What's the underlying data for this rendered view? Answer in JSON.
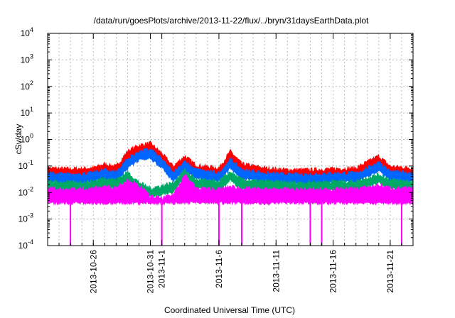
{
  "chart_data": {
    "type": "line",
    "title": "/data/run/goesPlots/archive/2013-11-22/flux/../bryn/31daysEarthData.plot",
    "xlabel": "Coordinated Universal Time (UTC)",
    "ylabel": "cSv/day",
    "yscale": "log",
    "ylim": [
      0.0001,
      10000
    ],
    "xlim": [
      "2013-10-22",
      "2013-11-23"
    ],
    "grid": true,
    "y_ticks": [
      {
        "value": 0.0001,
        "base": "10",
        "exp": "-4"
      },
      {
        "value": 0.001,
        "base": "10",
        "exp": "-3"
      },
      {
        "value": 0.01,
        "base": "10",
        "exp": "-2"
      },
      {
        "value": 0.1,
        "base": "10",
        "exp": "-1"
      },
      {
        "value": 1,
        "base": "10",
        "exp": "0"
      },
      {
        "value": 10,
        "base": "10",
        "exp": "1"
      },
      {
        "value": 100,
        "base": "10",
        "exp": "2"
      },
      {
        "value": 1000,
        "base": "10",
        "exp": "3"
      },
      {
        "value": 10000,
        "base": "10",
        "exp": "4"
      }
    ],
    "x_ticks": [
      {
        "date": "2013-10-26",
        "label": "2013-10-26"
      },
      {
        "date": "2013-10-31",
        "label": "2013-10-31"
      },
      {
        "date": "2013-11-01",
        "label": "2013-11-1"
      },
      {
        "date": "2013-11-06",
        "label": "2013-11-6"
      },
      {
        "date": "2013-11-11",
        "label": "2013-11-11"
      },
      {
        "date": "2013-11-16",
        "label": "2013-11-16"
      },
      {
        "date": "2013-11-21",
        "label": "2013-11-21"
      }
    ],
    "series": [
      {
        "color": "#ff0000",
        "x": [
          "2013-10-22",
          "2013-10-24",
          "2013-10-26",
          "2013-10-27",
          "2013-10-28",
          "2013-10-29",
          "2013-10-30",
          "2013-10-31",
          "2013-11-01",
          "2013-11-02",
          "2013-11-03",
          "2013-11-04",
          "2013-11-06",
          "2013-11-07",
          "2013-11-08",
          "2013-11-10",
          "2013-11-12",
          "2013-11-14",
          "2013-11-16",
          "2013-11-18",
          "2013-11-19",
          "2013-11-20",
          "2013-11-21",
          "2013-11-23"
        ],
        "values": [
          0.07,
          0.065,
          0.07,
          0.1,
          0.08,
          0.3,
          0.5,
          0.6,
          0.25,
          0.08,
          0.2,
          0.09,
          0.07,
          0.3,
          0.1,
          0.07,
          0.06,
          0.06,
          0.065,
          0.07,
          0.12,
          0.2,
          0.08,
          0.07
        ]
      },
      {
        "color": "#0066ff",
        "x": [
          "2013-10-22",
          "2013-10-24",
          "2013-10-26",
          "2013-10-27",
          "2013-10-28",
          "2013-10-29",
          "2013-10-30",
          "2013-10-31",
          "2013-11-01",
          "2013-11-02",
          "2013-11-03",
          "2013-11-04",
          "2013-11-06",
          "2013-11-07",
          "2013-11-08",
          "2013-11-10",
          "2013-11-12",
          "2013-11-14",
          "2013-11-16",
          "2013-11-18",
          "2013-11-19",
          "2013-11-20",
          "2013-11-21",
          "2013-11-23"
        ],
        "values": [
          0.045,
          0.04,
          0.045,
          0.06,
          0.05,
          0.15,
          0.3,
          0.35,
          0.15,
          0.05,
          0.12,
          0.06,
          0.045,
          0.15,
          0.06,
          0.045,
          0.04,
          0.04,
          0.045,
          0.045,
          0.07,
          0.12,
          0.05,
          0.045
        ]
      },
      {
        "color": "#00aa66",
        "x": [
          "2013-10-22",
          "2013-10-24",
          "2013-10-26",
          "2013-10-27",
          "2013-10-28",
          "2013-10-29",
          "2013-10-30",
          "2013-10-31",
          "2013-11-01",
          "2013-11-02",
          "2013-11-03",
          "2013-11-04",
          "2013-11-06",
          "2013-11-07",
          "2013-11-08",
          "2013-11-10",
          "2013-11-12",
          "2013-11-14",
          "2013-11-16",
          "2013-11-18",
          "2013-11-19",
          "2013-11-20",
          "2013-11-21",
          "2013-11-23"
        ],
        "values": [
          0.022,
          0.02,
          0.022,
          0.03,
          0.025,
          0.05,
          0.02,
          0.012,
          0.015,
          0.02,
          0.06,
          0.025,
          0.022,
          0.05,
          0.025,
          0.022,
          0.02,
          0.02,
          0.022,
          0.022,
          0.03,
          0.04,
          0.025,
          0.022
        ]
      },
      {
        "color": "#ff00ff",
        "x": [
          "2013-10-22",
          "2013-10-24",
          "2013-10-26",
          "2013-10-27",
          "2013-10-28",
          "2013-10-29",
          "2013-10-30",
          "2013-10-31",
          "2013-11-01",
          "2013-11-02",
          "2013-11-03",
          "2013-11-04",
          "2013-11-06",
          "2013-11-07",
          "2013-11-08",
          "2013-11-10",
          "2013-11-12",
          "2013-11-14",
          "2013-11-16",
          "2013-11-18",
          "2013-11-19",
          "2013-11-20",
          "2013-11-21",
          "2013-11-23"
        ],
        "values": [
          0.012,
          0.011,
          0.012,
          0.014,
          0.013,
          0.025,
          0.015,
          0.006,
          0.005,
          0.007,
          0.04,
          0.012,
          0.011,
          0.014,
          0.012,
          0.011,
          0.011,
          0.011,
          0.011,
          0.012,
          0.013,
          0.016,
          0.012,
          0.012
        ],
        "floor": 0.004,
        "dropouts": [
          "2013-10-24",
          "2013-11-01",
          "2013-11-06",
          "2013-11-08",
          "2013-11-14",
          "2013-11-15",
          "2013-11-22"
        ]
      }
    ]
  }
}
